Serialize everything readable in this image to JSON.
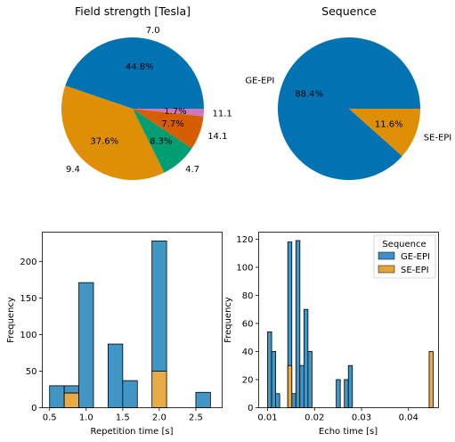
{
  "chart_data": [
    {
      "type": "pie",
      "title": "Field strength [Tesla]",
      "labels": [
        "7.0",
        "9.4",
        "4.7",
        "14.1",
        "11.1"
      ],
      "values": [
        44.8,
        37.6,
        8.3,
        7.7,
        1.7
      ],
      "pct_labels": [
        "44.8%",
        "37.6%",
        "8.3%",
        "7.7%",
        "1.7%"
      ],
      "colors": [
        "#0173b2",
        "#de8f05",
        "#029e73",
        "#d55e00",
        "#cc78bc"
      ],
      "start_angle": 0,
      "direction": "counterclockwise"
    },
    {
      "type": "pie",
      "title": "Sequence",
      "labels": [
        "GE-EPI",
        "SE-EPI"
      ],
      "values": [
        88.4,
        11.6
      ],
      "pct_labels": [
        "88.4%",
        "11.6%"
      ],
      "colors": [
        "#0173b2",
        "#de8f05"
      ],
      "start_angle": 0,
      "direction": "counterclockwise"
    },
    {
      "type": "bar",
      "subtype": "stacked-histogram",
      "xlabel": "Repetition time [s]",
      "ylabel": "Frequency",
      "xlim": [
        0.4,
        2.86
      ],
      "ylim": [
        0,
        240
      ],
      "xticks": [
        0.5,
        1.0,
        1.5,
        2.0,
        2.5
      ],
      "xtick_labels": [
        "0.5",
        "1.0",
        "1.5",
        "2.0",
        "2.5"
      ],
      "yticks": [
        0,
        50,
        100,
        150,
        200
      ],
      "ytick_labels": [
        "0",
        "50",
        "100",
        "150",
        "200"
      ],
      "bins": [
        {
          "x0": 0.5,
          "x1": 0.7,
          "total": 30,
          "se": 0
        },
        {
          "x0": 0.7,
          "x1": 0.9,
          "total": 30,
          "se": 20
        },
        {
          "x0": 0.9,
          "x1": 1.1,
          "total": 171,
          "se": 0
        },
        {
          "x0": 1.1,
          "x1": 1.3,
          "total": 0,
          "se": 0
        },
        {
          "x0": 1.3,
          "x1": 1.5,
          "total": 87,
          "se": 0
        },
        {
          "x0": 1.5,
          "x1": 1.7,
          "total": 37,
          "se": 0
        },
        {
          "x0": 1.7,
          "x1": 1.9,
          "total": 0,
          "se": 0
        },
        {
          "x0": 1.9,
          "x1": 2.1,
          "total": 228,
          "se": 50
        },
        {
          "x0": 2.1,
          "x1": 2.3,
          "total": 0,
          "se": 0
        },
        {
          "x0": 2.3,
          "x1": 2.5,
          "total": 0,
          "se": 0
        },
        {
          "x0": 2.5,
          "x1": 2.7,
          "total": 21,
          "se": 0
        }
      ],
      "colors": {
        "ge": "#0173b2",
        "se": "#de8f05"
      }
    },
    {
      "type": "bar",
      "subtype": "layered-histogram",
      "xlabel": "Echo time [s]",
      "ylabel": "Frequency",
      "xlim": [
        0.0081,
        0.0464
      ],
      "ylim": [
        0,
        125
      ],
      "xticks": [
        0.01,
        0.02,
        0.03,
        0.04
      ],
      "xtick_labels": [
        "0.01",
        "0.02",
        "0.03",
        "0.04"
      ],
      "yticks": [
        0,
        20,
        40,
        60,
        80,
        100,
        120
      ],
      "ytick_labels": [
        "0",
        "20",
        "40",
        "60",
        "80",
        "100",
        "120"
      ],
      "bin_start": 0.01,
      "bin_width": 0.00086,
      "ge_counts": [
        54,
        40,
        10,
        0,
        0,
        118,
        10,
        119,
        30,
        70,
        40,
        0,
        0,
        0,
        0,
        0,
        0,
        20,
        0,
        20,
        30
      ],
      "se_bins": [
        {
          "index": 5,
          "count": 30
        },
        {
          "index": 40,
          "count": 40
        }
      ],
      "legend": {
        "title": "Sequence",
        "entries": [
          "GE-EPI",
          "SE-EPI"
        ],
        "placement": "top-right"
      },
      "colors": {
        "ge": "#0173b2",
        "se": "#de8f05"
      }
    }
  ]
}
